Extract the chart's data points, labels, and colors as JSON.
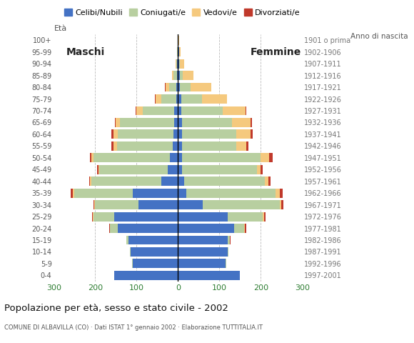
{
  "age_groups": [
    "0-4",
    "5-9",
    "10-14",
    "15-19",
    "20-24",
    "25-29",
    "30-34",
    "35-39",
    "40-44",
    "45-49",
    "50-54",
    "55-59",
    "60-64",
    "65-69",
    "70-74",
    "75-79",
    "80-84",
    "85-89",
    "90-94",
    "95-99",
    "100+"
  ],
  "birth_years": [
    "1997-2001",
    "1992-1996",
    "1987-1991",
    "1982-1986",
    "1977-1981",
    "1972-1976",
    "1967-1971",
    "1962-1966",
    "1957-1961",
    "1952-1956",
    "1947-1951",
    "1942-1946",
    "1937-1941",
    "1932-1936",
    "1927-1931",
    "1922-1926",
    "1917-1921",
    "1912-1916",
    "1907-1911",
    "1902-1906",
    "1901 o prima"
  ],
  "male": {
    "celibe": [
      155,
      110,
      115,
      120,
      145,
      155,
      95,
      110,
      40,
      25,
      20,
      13,
      11,
      10,
      10,
      5,
      4,
      3,
      2,
      1,
      0
    ],
    "coniugato": [
      0,
      1,
      2,
      5,
      20,
      50,
      105,
      140,
      170,
      165,
      185,
      135,
      135,
      130,
      75,
      35,
      18,
      8,
      3,
      1,
      0
    ],
    "vedovo": [
      0,
      0,
      0,
      0,
      0,
      1,
      2,
      5,
      2,
      2,
      5,
      8,
      10,
      10,
      15,
      15,
      8,
      3,
      1,
      0,
      0
    ],
    "divorziato": [
      0,
      0,
      0,
      0,
      1,
      2,
      2,
      5,
      3,
      3,
      3,
      5,
      5,
      3,
      2,
      1,
      1,
      0,
      0,
      0,
      0
    ]
  },
  "female": {
    "nubile": [
      150,
      115,
      120,
      120,
      135,
      120,
      60,
      20,
      15,
      10,
      10,
      10,
      10,
      10,
      8,
      8,
      5,
      4,
      3,
      2,
      1
    ],
    "coniugata": [
      0,
      1,
      2,
      5,
      25,
      85,
      185,
      215,
      195,
      180,
      190,
      130,
      130,
      120,
      100,
      50,
      25,
      8,
      2,
      1,
      0
    ],
    "vedova": [
      0,
      0,
      0,
      1,
      2,
      3,
      5,
      10,
      8,
      10,
      20,
      25,
      35,
      45,
      55,
      60,
      50,
      25,
      10,
      3,
      1
    ],
    "divorziata": [
      0,
      0,
      0,
      1,
      2,
      3,
      5,
      8,
      5,
      5,
      8,
      5,
      5,
      3,
      2,
      1,
      1,
      0,
      0,
      0,
      0
    ]
  },
  "colors": {
    "celibe_nubile": "#4472c4",
    "coniugato_coniugata": "#b8cfa0",
    "vedovo_vedova": "#f5c97e",
    "divorziato_divorziata": "#c0392b"
  },
  "xlim": 300,
  "title": "Popolazione per età, sesso e stato civile - 2002",
  "subtitle": "COMUNE DI ALBAVILLA (CO) · Dati ISTAT 1° gennaio 2002 · Elaborazione TUTTITALIA.IT",
  "xlabel_left": "Maschi",
  "xlabel_right": "Femmine",
  "eta_label": "Età",
  "anno_label": "Anno di nascita",
  "legend_labels": [
    "Celibi/Nubili",
    "Coniugati/e",
    "Vedovi/e",
    "Divorziati/e"
  ],
  "background_color": "#ffffff",
  "grid_color": "#bbbbbb"
}
